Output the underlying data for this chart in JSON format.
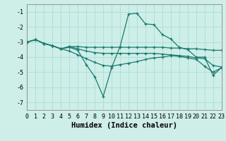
{
  "xlabel": "Humidex (Indice chaleur)",
  "xlim": [
    0,
    23
  ],
  "ylim": [
    -7.5,
    -0.5
  ],
  "yticks": [
    -7,
    -6,
    -5,
    -4,
    -3,
    -2,
    -1
  ],
  "xticks": [
    0,
    1,
    2,
    3,
    4,
    5,
    6,
    7,
    8,
    9,
    10,
    11,
    12,
    13,
    14,
    15,
    16,
    17,
    18,
    19,
    20,
    21,
    22,
    23
  ],
  "bg_color": "#ceeee8",
  "grid_color": "#aaddda",
  "line_color": "#1a7a6e",
  "lines": [
    {
      "x": [
        0,
        1,
        2,
        3,
        4,
        5,
        6,
        7,
        8,
        9,
        10,
        11,
        12,
        13,
        14,
        15,
        16,
        17,
        18,
        19,
        20,
        21,
        22,
        23
      ],
      "y": [
        -3.0,
        -2.85,
        -3.1,
        -3.25,
        -3.45,
        -3.35,
        -3.55,
        -4.5,
        -5.3,
        -6.6,
        -4.7,
        -3.3,
        -1.15,
        -1.1,
        -1.8,
        -1.85,
        -2.5,
        -2.8,
        -3.35,
        -3.5,
        -4.0,
        -4.0,
        -5.2,
        -4.7
      ]
    },
    {
      "x": [
        0,
        1,
        2,
        3,
        4,
        5,
        6,
        7,
        8,
        9,
        10,
        11,
        12,
        13,
        14,
        15,
        16,
        17,
        18,
        19,
        20,
        21,
        22,
        23
      ],
      "y": [
        -3.0,
        -2.85,
        -3.1,
        -3.25,
        -3.45,
        -3.3,
        -3.3,
        -3.35,
        -3.35,
        -3.35,
        -3.35,
        -3.35,
        -3.35,
        -3.35,
        -3.35,
        -3.35,
        -3.35,
        -3.4,
        -3.4,
        -3.45,
        -3.45,
        -3.5,
        -3.55,
        -3.55
      ]
    },
    {
      "x": [
        0,
        1,
        2,
        3,
        4,
        5,
        6,
        7,
        8,
        9,
        10,
        11,
        12,
        13,
        14,
        15,
        16,
        17,
        18,
        19,
        20,
        21,
        22,
        23
      ],
      "y": [
        -3.0,
        -2.85,
        -3.1,
        -3.25,
        -3.45,
        -3.3,
        -3.45,
        -3.6,
        -3.7,
        -3.75,
        -3.75,
        -3.75,
        -3.75,
        -3.75,
        -3.75,
        -3.75,
        -3.8,
        -3.85,
        -3.9,
        -3.95,
        -4.05,
        -4.1,
        -4.55,
        -4.65
      ]
    },
    {
      "x": [
        0,
        1,
        2,
        3,
        4,
        5,
        6,
        7,
        8,
        9,
        10,
        11,
        12,
        13,
        14,
        15,
        16,
        17,
        18,
        19,
        20,
        21,
        22,
        23
      ],
      "y": [
        -3.0,
        -2.85,
        -3.1,
        -3.25,
        -3.45,
        -3.6,
        -3.85,
        -4.1,
        -4.35,
        -4.55,
        -4.6,
        -4.5,
        -4.4,
        -4.3,
        -4.15,
        -4.05,
        -4.0,
        -3.9,
        -3.95,
        -4.05,
        -4.15,
        -4.6,
        -5.0,
        -4.7
      ]
    }
  ],
  "marker": "+",
  "markersize": 3.5,
  "linewidth": 0.9,
  "fontsize_label": 7.5,
  "fontsize_tick": 6.0
}
